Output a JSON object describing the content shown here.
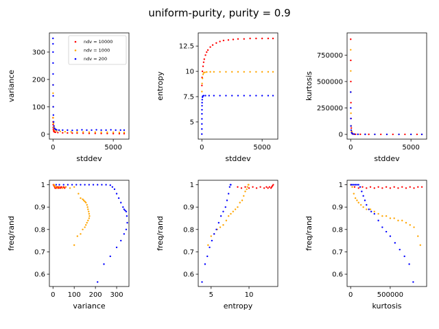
{
  "figure": {
    "suptitle": "uniform-purity, purity = 0.9",
    "series_colors": {
      "ndv = 10000": "#ff0000",
      "ndv = 1000": "#ffa500",
      "ndv = 200": "#0000ff"
    }
  },
  "chart_data": [
    {
      "id": "p1",
      "type": "scatter",
      "xlabel": "stddev",
      "ylabel": "variance",
      "xlim": [
        -300,
        6300
      ],
      "ylim": [
        -18,
        370
      ],
      "xticks": [
        0,
        5000
      ],
      "yticks": [
        0,
        100,
        200,
        300
      ],
      "legend": {
        "placement": "top-right",
        "entries": [
          "ndv = 10000",
          "ndv = 1000",
          "ndv = 200"
        ]
      },
      "series": [
        {
          "name": "ndv = 10000",
          "color": "#ff0000",
          "x": [
            0,
            5,
            10,
            20,
            30,
            50,
            80,
            120,
            200,
            400,
            800,
            1200,
            1600,
            2000,
            2500,
            3000,
            3500,
            4000,
            4500,
            5000,
            5500,
            5900
          ],
          "y": [
            60,
            45,
            35,
            25,
            18,
            12,
            10,
            8,
            7,
            6,
            5,
            4.5,
            4,
            4,
            3.5,
            3,
            3,
            2.5,
            2.5,
            2,
            2,
            2
          ]
        },
        {
          "name": "ndv = 1000",
          "color": "#ffa500",
          "x": [
            0,
            5,
            10,
            20,
            40,
            80,
            150,
            300,
            600,
            1000,
            1500,
            2000,
            2500,
            3000,
            3500,
            4000,
            4500,
            5000,
            5500,
            5900
          ],
          "y": [
            180,
            150,
            100,
            60,
            40,
            25,
            15,
            12,
            10,
            9,
            8.5,
            8,
            8,
            7.5,
            7.5,
            7,
            7,
            7,
            6.5,
            6.5
          ]
        },
        {
          "name": "ndv = 200",
          "color": "#0000ff",
          "x": [
            0,
            2,
            4,
            6,
            8,
            10,
            15,
            20,
            30,
            50,
            80,
            120,
            200,
            300,
            500,
            800,
            1200,
            1600,
            2000,
            2400,
            2800,
            3200,
            3600,
            4000,
            4400,
            4800,
            5200,
            5600,
            5900
          ],
          "y": [
            350,
            330,
            300,
            260,
            220,
            180,
            140,
            100,
            70,
            45,
            30,
            22,
            18,
            16,
            15,
            15,
            15,
            14,
            15,
            16,
            15,
            15,
            16,
            15,
            15,
            16,
            15,
            15,
            15
          ]
        }
      ]
    },
    {
      "id": "p2",
      "type": "scatter",
      "xlabel": "stddev",
      "ylabel": "entropy",
      "xlim": [
        -300,
        6300
      ],
      "ylim": [
        3.3,
        13.8
      ],
      "xticks": [
        0,
        5000
      ],
      "yticks": [
        5.0,
        7.5,
        10.0,
        12.5
      ],
      "series": [
        {
          "name": "ndv = 10000",
          "color": "#ff0000",
          "x": [
            5,
            20,
            50,
            100,
            150,
            200,
            300,
            400,
            500,
            700,
            900,
            1200,
            1500,
            1800,
            2200,
            2600,
            3000,
            3500,
            4000,
            4500,
            5000,
            5500,
            5900
          ],
          "y": [
            8.6,
            9.4,
            10.0,
            10.5,
            10.9,
            11.2,
            11.6,
            11.9,
            12.1,
            12.4,
            12.6,
            12.8,
            12.95,
            13.05,
            13.1,
            13.15,
            13.2,
            13.2,
            13.25,
            13.25,
            13.25,
            13.25,
            13.25
          ]
        },
        {
          "name": "ndv = 1000",
          "color": "#ffa500",
          "x": [
            5,
            20,
            50,
            100,
            150,
            250,
            400,
            700,
            1000,
            1500,
            2000,
            2500,
            3000,
            3500,
            4000,
            4500,
            5000,
            5500,
            5900
          ],
          "y": [
            8.0,
            8.8,
            9.3,
            9.7,
            9.85,
            9.9,
            9.93,
            9.95,
            9.95,
            9.95,
            9.95,
            9.95,
            9.95,
            9.95,
            9.95,
            9.95,
            9.95,
            9.95,
            9.95
          ]
        },
        {
          "name": "ndv = 200",
          "color": "#0000ff",
          "x": [
            0,
            2,
            4,
            6,
            8,
            10,
            15,
            20,
            30,
            50,
            80,
            150,
            300,
            600,
            1000,
            1500,
            2000,
            2500,
            3000,
            3500,
            4000,
            4500,
            5000,
            5500,
            5900
          ],
          "y": [
            3.8,
            4.3,
            4.8,
            5.3,
            5.8,
            6.2,
            6.6,
            6.9,
            7.2,
            7.45,
            7.55,
            7.6,
            7.6,
            7.6,
            7.6,
            7.6,
            7.6,
            7.6,
            7.6,
            7.6,
            7.6,
            7.6,
            7.6,
            7.6,
            7.6
          ]
        }
      ]
    },
    {
      "id": "p3",
      "type": "scatter",
      "xlabel": "stddev",
      "ylabel": "kurtosis",
      "xlim": [
        -300,
        6300
      ],
      "ylim": [
        -45000,
        960000
      ],
      "xticks": [
        0,
        5000
      ],
      "yticks": [
        0,
        250000,
        500000,
        750000
      ],
      "series": [
        {
          "name": "ndv = 10000",
          "color": "#ff0000",
          "x": [
            0,
            5,
            10,
            20,
            30,
            50,
            80,
            120,
            200,
            400,
            800,
            1500,
            2500,
            3500,
            4500,
            5500,
            5900
          ],
          "y": [
            900000,
            700000,
            500000,
            300000,
            150000,
            60000,
            20000,
            8000,
            3000,
            1000,
            500,
            300,
            200,
            200,
            200,
            200,
            200
          ]
        },
        {
          "name": "ndv = 1000",
          "color": "#ffa500",
          "x": [
            0,
            5,
            10,
            20,
            40,
            80,
            150,
            300,
            600,
            1200,
            2000,
            3000,
            4000,
            5000,
            5900
          ],
          "y": [
            800000,
            600000,
            400000,
            200000,
            80000,
            30000,
            10000,
            3000,
            1000,
            500,
            300,
            200,
            200,
            200,
            200
          ]
        },
        {
          "name": "ndv = 200",
          "color": "#0000ff",
          "x": [
            0,
            5,
            10,
            20,
            40,
            80,
            150,
            300,
            600,
            1200,
            2000,
            3000,
            4000,
            5000,
            5900
          ],
          "y": [
            400000,
            250000,
            150000,
            80000,
            40000,
            15000,
            5000,
            2000,
            800,
            300,
            200,
            200,
            200,
            200,
            200
          ]
        }
      ]
    },
    {
      "id": "p4",
      "type": "scatter",
      "xlabel": "variance",
      "ylabel": "freq/rand",
      "xlim": [
        -17,
        358
      ],
      "ylim": [
        0.545,
        1.02
      ],
      "xticks": [
        0,
        100,
        200,
        300
      ],
      "yticks": [
        0.6,
        0.7,
        0.8,
        0.9,
        1.0
      ],
      "series": [
        {
          "name": "ndv = 10000",
          "color": "#ff0000",
          "x": [
            2,
            5,
            8,
            10,
            12,
            15,
            18,
            22,
            25,
            28,
            32,
            36,
            40,
            45,
            50,
            55,
            60
          ],
          "y": [
            1.0,
            0.995,
            0.99,
            0.985,
            0.99,
            0.985,
            0.99,
            0.985,
            0.99,
            0.985,
            0.99,
            0.985,
            0.99,
            0.985,
            0.99,
            0.985,
            0.99
          ]
        },
        {
          "name": "ndv = 1000",
          "color": "#ffa500",
          "x": [
            5,
            8,
            12,
            20,
            30,
            45,
            60,
            80,
            100,
            120,
            130,
            140,
            145,
            150,
            155,
            160,
            163,
            165,
            168,
            170,
            172,
            170,
            165,
            160,
            155,
            150,
            140,
            130,
            115,
            100
          ],
          "y": [
            1.0,
            0.995,
            0.99,
            0.985,
            0.99,
            0.985,
            0.99,
            0.985,
            0.99,
            0.96,
            0.94,
            0.935,
            0.93,
            0.925,
            0.92,
            0.91,
            0.9,
            0.89,
            0.88,
            0.87,
            0.86,
            0.85,
            0.84,
            0.83,
            0.82,
            0.81,
            0.8,
            0.78,
            0.77,
            0.73
          ]
        },
        {
          "name": "ndv = 200",
          "color": "#0000ff",
          "x": [
            15,
            30,
            50,
            70,
            90,
            110,
            130,
            150,
            170,
            190,
            210,
            230,
            250,
            270,
            280,
            290,
            300,
            310,
            320,
            330,
            335,
            340,
            345,
            348,
            350,
            345,
            335,
            320,
            300,
            270,
            240,
            210
          ],
          "y": [
            1.0,
            1.0,
            1.0,
            1.0,
            1.0,
            1.0,
            1.0,
            1.0,
            1.0,
            1.0,
            1.0,
            1.0,
            1.0,
            0.998,
            0.99,
            0.98,
            0.96,
            0.94,
            0.92,
            0.9,
            0.89,
            0.885,
            0.88,
            0.86,
            0.83,
            0.8,
            0.78,
            0.75,
            0.72,
            0.68,
            0.645,
            0.565
          ]
        }
      ]
    },
    {
      "id": "p5",
      "type": "scatter",
      "xlabel": "entropy",
      "ylabel": "freq/rand",
      "xlim": [
        3.3,
        13.8
      ],
      "ylim": [
        0.545,
        1.02
      ],
      "xticks": [
        5,
        10
      ],
      "yticks": [
        0.6,
        0.7,
        0.8,
        0.9,
        1.0
      ],
      "series": [
        {
          "name": "ndv = 10000",
          "color": "#ff0000",
          "x": [
            8.5,
            9.0,
            9.5,
            10.0,
            10.5,
            11.0,
            11.5,
            12.0,
            12.3,
            12.5,
            12.7,
            12.9,
            13.0,
            13.1,
            13.2
          ],
          "y": [
            0.99,
            0.985,
            0.99,
            0.985,
            0.99,
            0.985,
            0.99,
            0.985,
            0.99,
            0.985,
            0.99,
            0.985,
            0.99,
            0.995,
            1.0
          ]
        },
        {
          "name": "ndv = 1000",
          "color": "#ffa500",
          "x": [
            4.6,
            5.0,
            5.4,
            5.8,
            6.2,
            6.6,
            7.0,
            7.3,
            7.6,
            7.9,
            8.2,
            8.5,
            8.8,
            9.1,
            9.3,
            9.5,
            9.7,
            9.8,
            9.9,
            9.95
          ],
          "y": [
            0.73,
            0.77,
            0.78,
            0.8,
            0.81,
            0.82,
            0.84,
            0.86,
            0.87,
            0.88,
            0.89,
            0.9,
            0.92,
            0.93,
            0.95,
            0.97,
            0.98,
            0.99,
            1.0,
            1.0
          ]
        },
        {
          "name": "ndv = 200",
          "color": "#0000ff",
          "x": [
            3.8,
            4.2,
            4.5,
            4.8,
            5.1,
            5.4,
            5.7,
            6.0,
            6.3,
            6.6,
            6.9,
            7.1,
            7.3,
            7.45,
            7.55,
            7.6
          ],
          "y": [
            0.565,
            0.645,
            0.68,
            0.72,
            0.75,
            0.78,
            0.8,
            0.83,
            0.86,
            0.88,
            0.9,
            0.93,
            0.96,
            0.99,
            1.0,
            1.0
          ]
        }
      ]
    },
    {
      "id": "p6",
      "type": "scatter",
      "xlabel": "kurtosis",
      "ylabel": "freq/rand",
      "xlim": [
        -45000,
        960000
      ],
      "ylim": [
        0.545,
        1.02
      ],
      "xticks": [
        0,
        500000
      ],
      "yticks": [
        0.6,
        0.7,
        0.8,
        0.9,
        1.0
      ],
      "series": [
        {
          "name": "ndv = 10000",
          "color": "#ff0000",
          "x": [
            1000,
            50000,
            100000,
            150000,
            200000,
            250000,
            300000,
            350000,
            400000,
            450000,
            500000,
            550000,
            600000,
            650000,
            700000,
            750000,
            800000,
            850000,
            900000
          ],
          "y": [
            1.0,
            0.99,
            0.985,
            0.99,
            0.985,
            0.99,
            0.985,
            0.99,
            0.985,
            0.99,
            0.985,
            0.99,
            0.985,
            0.99,
            0.985,
            0.99,
            0.985,
            0.99,
            0.99
          ]
        },
        {
          "name": "ndv = 1000",
          "color": "#ffa500",
          "x": [
            2000,
            20000,
            40000,
            60000,
            80000,
            100000,
            130000,
            160000,
            200000,
            250000,
            300000,
            350000,
            400000,
            450000,
            500000,
            550000,
            600000,
            650000,
            700000,
            750000,
            800000,
            850000,
            880000
          ],
          "y": [
            1.0,
            0.99,
            0.96,
            0.94,
            0.93,
            0.92,
            0.91,
            0.9,
            0.89,
            0.89,
            0.88,
            0.87,
            0.86,
            0.86,
            0.85,
            0.85,
            0.84,
            0.84,
            0.83,
            0.82,
            0.81,
            0.77,
            0.73
          ]
        },
        {
          "name": "ndv = 200",
          "color": "#0000ff",
          "x": [
            5000,
            20000,
            40000,
            60000,
            80000,
            100000,
            120000,
            140000,
            160000,
            180000,
            200000,
            230000,
            260000,
            300000,
            350000,
            400000,
            450000,
            500000,
            560000,
            620000,
            680000,
            740000,
            790000
          ],
          "y": [
            1.0,
            1.0,
            1.0,
            1.0,
            1.0,
            1.0,
            0.99,
            0.97,
            0.95,
            0.93,
            0.91,
            0.89,
            0.88,
            0.87,
            0.84,
            0.81,
            0.79,
            0.77,
            0.74,
            0.71,
            0.68,
            0.645,
            0.565
          ]
        }
      ]
    }
  ]
}
